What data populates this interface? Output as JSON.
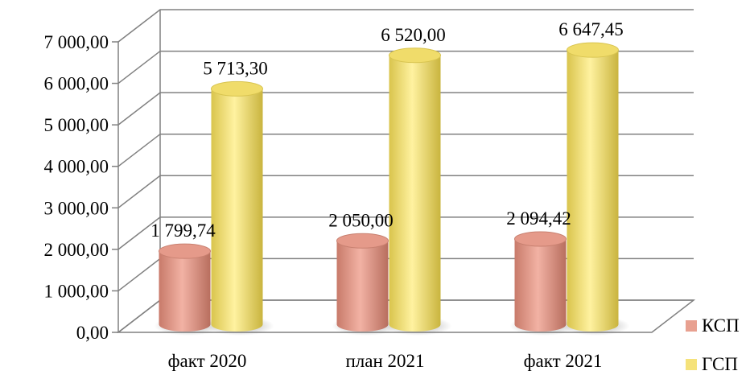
{
  "chart_data": {
    "type": "bar",
    "style": "3d-cylinder",
    "categories": [
      "факт 2020",
      "план 2021",
      "факт 2021"
    ],
    "series": [
      {
        "name": "КСП",
        "values": [
          1799.74,
          2050.0,
          2094.42
        ],
        "value_labels": [
          "1 799,74",
          "2 050,00",
          "2 094,42"
        ],
        "color": "#e8a090"
      },
      {
        "name": "ГСП",
        "values": [
          5713.3,
          6520.0,
          6647.45
        ],
        "value_labels": [
          "5 713,30",
          "6 520,00",
          "6 647,45"
        ],
        "color": "#f5e27a"
      }
    ],
    "ylim": [
      0,
      7000
    ],
    "y_ticks": [
      0,
      1000,
      2000,
      3000,
      4000,
      5000,
      6000,
      7000
    ],
    "y_tick_labels": [
      "0,00",
      "1 000,00",
      "2 000,00",
      "3 000,00",
      "4 000,00",
      "5 000,00",
      "6 000,00",
      "7 000,00"
    ],
    "grid": true,
    "legend_position": "right",
    "title": "",
    "xlabel": "",
    "ylabel": ""
  }
}
